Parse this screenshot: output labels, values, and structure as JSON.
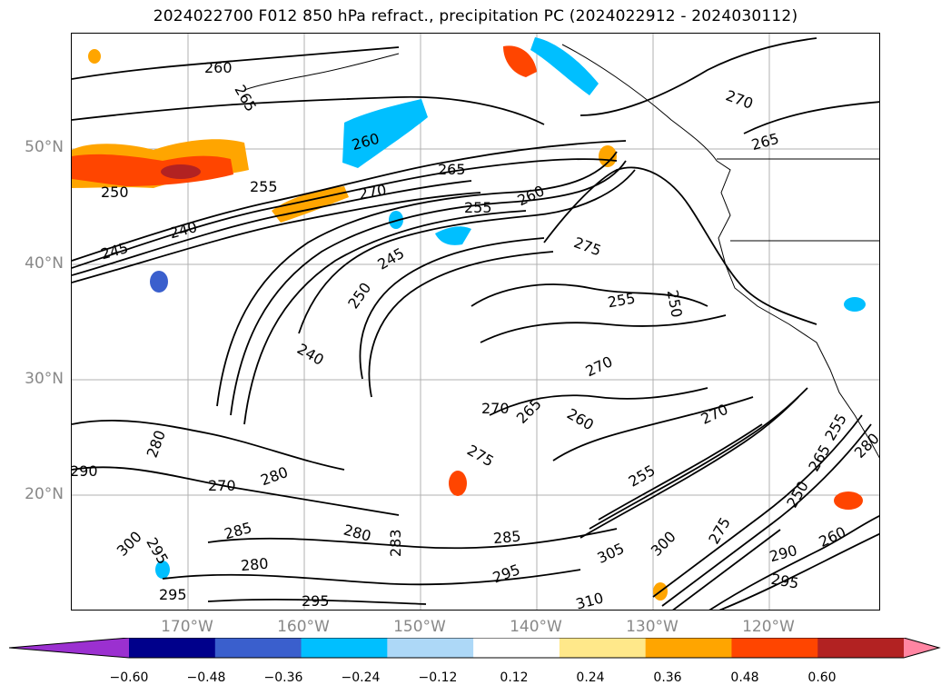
{
  "title": "2024022700 F012 850 hPa refract., precipitation PC (2024022912 - 2024030112)",
  "lat_labels": [
    "50°N",
    "40°N",
    "30°N",
    "20°N"
  ],
  "lon_labels": [
    "170°W",
    "160°W",
    "150°W",
    "140°W",
    "130°W",
    "120°W"
  ],
  "colorbar": {
    "ticks": [
      "−0.60",
      "−0.48",
      "−0.36",
      "−0.24",
      "−0.12",
      "0.12",
      "0.24",
      "0.36",
      "0.48",
      "0.60"
    ],
    "colors": [
      "#9b30d0",
      "#00008b",
      "#3a5fcd",
      "#00bfff",
      "#add8f7",
      "#ffffff",
      "#ffe88a",
      "#ffa500",
      "#ff4500",
      "#b22222",
      "#ff85a2"
    ]
  },
  "contour_labels": [
    "260",
    "265",
    "270",
    "265",
    "260",
    "265",
    "255",
    "250",
    "270",
    "260",
    "255",
    "240",
    "245",
    "245",
    "250",
    "275",
    "255",
    "250",
    "240",
    "270",
    "270",
    "265",
    "260",
    "270",
    "275",
    "255",
    "280",
    "280",
    "270",
    "290",
    "285",
    "280",
    "283",
    "285",
    "295",
    "300",
    "305",
    "300",
    "295",
    "280",
    "295",
    "295",
    "310",
    "275",
    "250",
    "265",
    "255",
    "260",
    "280",
    "290",
    "295"
  ]
}
